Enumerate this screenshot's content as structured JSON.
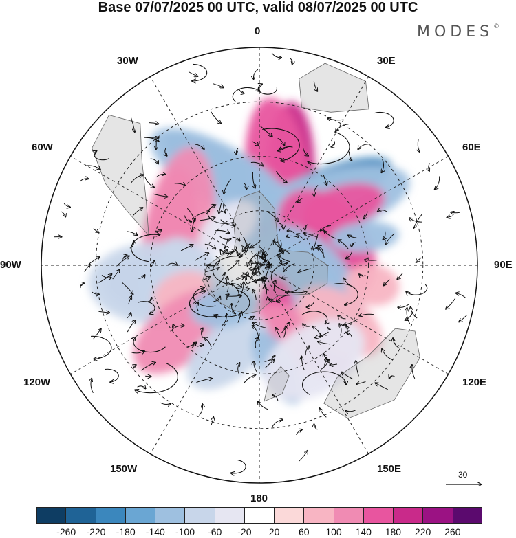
{
  "title": "Base 07/07/2025 00 UTC, valid 08/07/2025 00 UTC",
  "brand": {
    "text": "MODES",
    "mark": "©"
  },
  "longitude_labels": {
    "top": "0",
    "top_left": "30W",
    "top_right": "30E",
    "upper_left": "60W",
    "upper_right": "60E",
    "left": "90W",
    "right": "90E",
    "lower_left": "120W",
    "lower_right": "120E",
    "bottom_left": "150W",
    "bottom_right": "150E",
    "bottom": "180"
  },
  "reference_vector": {
    "value": "30"
  },
  "colorbar": {
    "colors": [
      "#0e3d63",
      "#1f6396",
      "#3b87bd",
      "#6aa6d3",
      "#9ec0e0",
      "#c8d6ea",
      "#e6e6f2",
      "#ffffff",
      "#fbd9d9",
      "#f8b5c3",
      "#f08bb3",
      "#e8559f",
      "#c92a8a",
      "#9b1283",
      "#5b0a6e"
    ],
    "ticks": [
      "-260",
      "-220",
      "-180",
      "-140",
      "-100",
      "-60",
      "-20",
      "20",
      "60",
      "100",
      "140",
      "180",
      "220",
      "260"
    ]
  },
  "anomaly_blobs": [
    {
      "lon": 18,
      "colat": 38,
      "value": 200,
      "rx": 34,
      "ry": 95,
      "rot": -18
    },
    {
      "lon": 12,
      "colat": 32,
      "value": 140,
      "rx": 46,
      "ry": 120,
      "rot": -18
    },
    {
      "lon": 40,
      "colat": 35,
      "value": -200,
      "rx": 32,
      "ry": 110,
      "rot": 28
    },
    {
      "lon": 45,
      "colat": 30,
      "value": -140,
      "rx": 48,
      "ry": 140,
      "rot": 28
    },
    {
      "lon": -22,
      "colat": 38,
      "value": -180,
      "rx": 30,
      "ry": 95,
      "rot": -38
    },
    {
      "lon": -22,
      "colat": 35,
      "value": -120,
      "rx": 44,
      "ry": 120,
      "rot": -38
    },
    {
      "lon": 78,
      "colat": 28,
      "value": 220,
      "rx": 40,
      "ry": 62,
      "rot": 70
    },
    {
      "lon": 72,
      "colat": 26,
      "value": 160,
      "rx": 58,
      "ry": 90,
      "rot": 70
    },
    {
      "lon": 55,
      "colat": 38,
      "value": 140,
      "rx": 30,
      "ry": 60,
      "rot": 20
    },
    {
      "lon": -70,
      "colat": 35,
      "value": 160,
      "rx": 36,
      "ry": 95,
      "rot": 80
    },
    {
      "lon": -70,
      "colat": 32,
      "value": 100,
      "rx": 50,
      "ry": 130,
      "rot": 80
    },
    {
      "lon": 110,
      "colat": 20,
      "value": -180,
      "rx": 40,
      "ry": 70,
      "rot": 30
    },
    {
      "lon": 110,
      "colat": 20,
      "value": -120,
      "rx": 58,
      "ry": 100,
      "rot": 30
    },
    {
      "lon": 160,
      "colat": 18,
      "value": 140,
      "rx": 26,
      "ry": 50,
      "rot": 20
    },
    {
      "lon": 150,
      "colat": 32,
      "value": 120,
      "rx": 40,
      "ry": 80,
      "rot": -30
    },
    {
      "lon": -100,
      "colat": 40,
      "value": -140,
      "rx": 40,
      "ry": 70,
      "rot": 10
    },
    {
      "lon": -100,
      "colat": 38,
      "value": -80,
      "rx": 60,
      "ry": 100,
      "rot": 10
    },
    {
      "lon": -95,
      "colat": 24,
      "value": -100,
      "rx": 34,
      "ry": 60,
      "rot": 50
    },
    {
      "lon": -110,
      "colat": 30,
      "value": 80,
      "rx": 30,
      "ry": 44,
      "rot": 0
    },
    {
      "lon": -130,
      "colat": 38,
      "value": 120,
      "rx": 44,
      "ry": 80,
      "rot": 0
    },
    {
      "lon": -160,
      "colat": 34,
      "value": -100,
      "rx": 40,
      "ry": 70,
      "rot": 30
    },
    {
      "lon": -140,
      "colat": 20,
      "value": -120,
      "rx": 30,
      "ry": 50,
      "rot": 40
    },
    {
      "lon": 170,
      "colat": 38,
      "value": -140,
      "rx": 26,
      "ry": 60,
      "rot": -20
    },
    {
      "lon": 125,
      "colat": 36,
      "value": 80,
      "rx": 40,
      "ry": 70,
      "rot": 0
    },
    {
      "lon": 75,
      "colat": 40,
      "value": -120,
      "rx": 22,
      "ry": 50,
      "rot": 10
    },
    {
      "lon": 100,
      "colat": 42,
      "value": 80,
      "rx": 30,
      "ry": 40,
      "rot": 0
    },
    {
      "lon": 150,
      "colat": 40,
      "value": -40,
      "rx": 80,
      "ry": 50,
      "rot": 0
    },
    {
      "lon": -40,
      "colat": 18,
      "value": -60,
      "rx": 50,
      "ry": 30,
      "rot": 0
    }
  ]
}
